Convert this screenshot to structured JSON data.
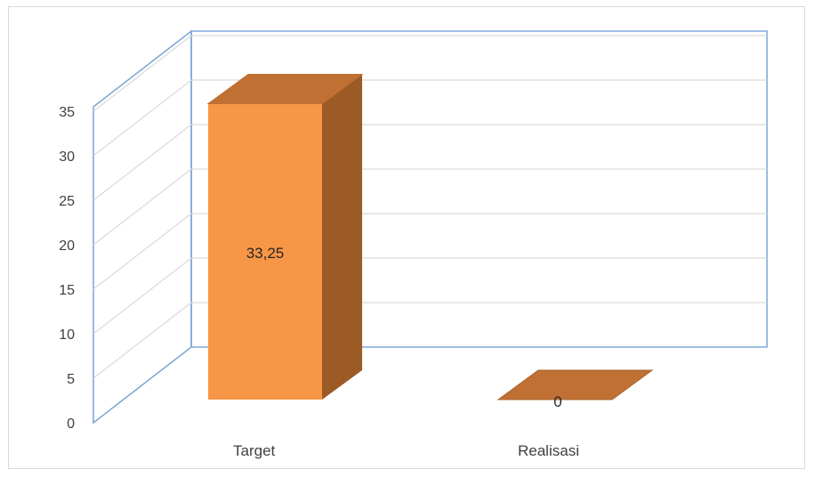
{
  "chart_data": {
    "type": "bar",
    "style": "3d-column",
    "categories": [
      "Target",
      "Realisasi"
    ],
    "values": [
      33.25,
      0
    ],
    "data_labels": [
      "33,25",
      "0"
    ],
    "y_ticks": [
      "0",
      "5",
      "10",
      "15",
      "20",
      "25",
      "30",
      "35"
    ],
    "ylim": [
      0,
      35
    ],
    "grid": true,
    "legend": "none",
    "colors": {
      "bar_front": "#F79646",
      "bar_side": "#9C5A25",
      "bar_top": "#BF7032",
      "walls": "#7FA8D8",
      "gridline": "#D9D9D9",
      "axis_text": "#404040"
    }
  }
}
